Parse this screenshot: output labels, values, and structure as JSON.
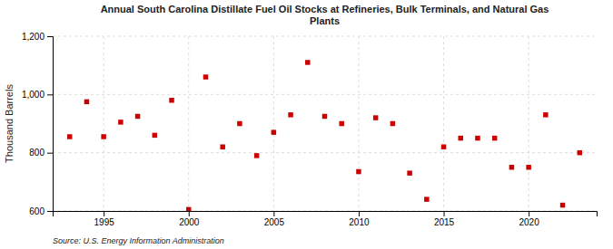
{
  "chart_data": {
    "type": "scatter",
    "title": "Annual South Carolina Distillate Fuel Oil Stocks at Refineries, Bulk Terminals, and Natural Gas\nPlants",
    "y_label": "Thousand Barrels",
    "source": "Source: U.S. Energy Information Administration",
    "x": [
      1993,
      1994,
      1995,
      1996,
      1997,
      1998,
      1999,
      2000,
      2001,
      2002,
      2003,
      2004,
      2005,
      2006,
      2007,
      2008,
      2009,
      2010,
      2011,
      2012,
      2013,
      2014,
      2015,
      2016,
      2017,
      2018,
      2019,
      2020,
      2021,
      2022,
      2023
    ],
    "values": [
      855,
      975,
      855,
      905,
      925,
      860,
      980,
      605,
      1060,
      820,
      900,
      790,
      870,
      930,
      1110,
      925,
      900,
      735,
      920,
      900,
      730,
      640,
      820,
      850,
      850,
      850,
      750,
      750,
      930,
      620,
      800
    ],
    "color": "#cc0000",
    "marker": "square",
    "xlim": [
      1992,
      2024
    ],
    "xticks": [
      1995,
      2000,
      2005,
      2010,
      2015,
      2020
    ],
    "ylim": [
      600,
      1200
    ],
    "yticks": [
      600,
      800,
      {
        "value": 1000,
        "label": "1,000"
      },
      {
        "value": 1200,
        "label": "1,200"
      }
    ],
    "grid": true
  }
}
